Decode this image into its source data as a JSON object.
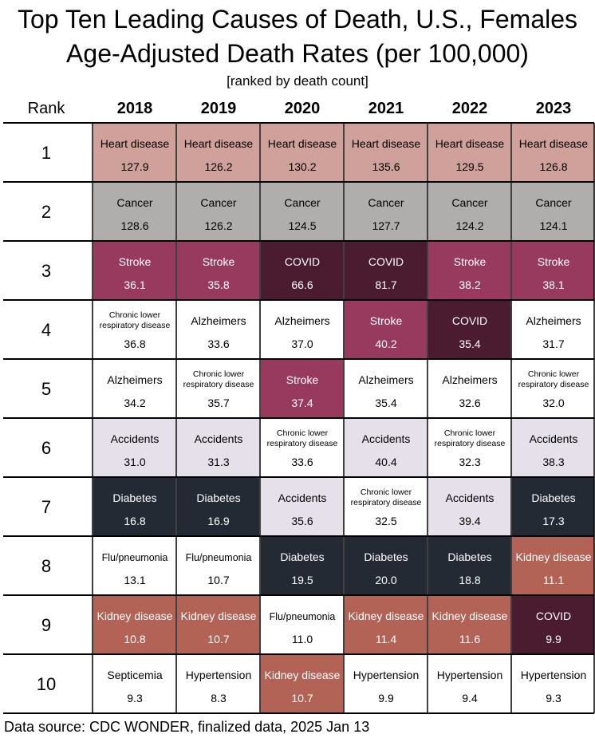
{
  "title_line1": "Top Ten Leading Causes of Death, U.S., Females",
  "title_line2": "Age-Adjusted Death Rates (per 100,000)",
  "subtitle": "[ranked by death count]",
  "source": "Data source: CDC WONDER, finalized data, 2025 Jan 13",
  "colors": {
    "Heart disease": "#d0a09a",
    "Cancer": "#b0aeac",
    "Stroke": "#983a5e",
    "COVID": "#4b1c30",
    "Diabetes": "#242a34",
    "Kidney disease": "#b26356",
    "Accidents": "#e5e0e9",
    "Chronic lower respiratory disease": "#ffffff",
    "Alzheimers": "#ffffff",
    "Flu/pneumonia": "#ffffff",
    "Septicemia": "#ffffff",
    "Hypertension": "#ffffff",
    "dark_text_on": [
      "Stroke",
      "COVID",
      "Diabetes",
      "Kidney disease"
    ]
  },
  "chart_data": {
    "type": "table",
    "rank_header": "Rank",
    "years": [
      "2018",
      "2019",
      "2020",
      "2021",
      "2022",
      "2023"
    ],
    "ranks": [
      "1",
      "2",
      "3",
      "4",
      "5",
      "6",
      "7",
      "8",
      "9",
      "10"
    ],
    "rows": [
      [
        {
          "cause": "Heart disease",
          "rate": "127.9"
        },
        {
          "cause": "Heart disease",
          "rate": "126.2"
        },
        {
          "cause": "Heart disease",
          "rate": "130.2"
        },
        {
          "cause": "Heart disease",
          "rate": "135.6"
        },
        {
          "cause": "Heart disease",
          "rate": "129.5"
        },
        {
          "cause": "Heart disease",
          "rate": "126.8"
        }
      ],
      [
        {
          "cause": "Cancer",
          "rate": "128.6"
        },
        {
          "cause": "Cancer",
          "rate": "126.2"
        },
        {
          "cause": "Cancer",
          "rate": "124.5"
        },
        {
          "cause": "Cancer",
          "rate": "127.7"
        },
        {
          "cause": "Cancer",
          "rate": "124.2"
        },
        {
          "cause": "Cancer",
          "rate": "124.1"
        }
      ],
      [
        {
          "cause": "Stroke",
          "rate": "36.1"
        },
        {
          "cause": "Stroke",
          "rate": "35.8"
        },
        {
          "cause": "COVID",
          "rate": "66.6"
        },
        {
          "cause": "COVID",
          "rate": "81.7"
        },
        {
          "cause": "Stroke",
          "rate": "38.2"
        },
        {
          "cause": "Stroke",
          "rate": "38.1"
        }
      ],
      [
        {
          "cause": "Chronic lower respiratory disease",
          "rate": "36.8"
        },
        {
          "cause": "Alzheimers",
          "rate": "33.6"
        },
        {
          "cause": "Alzheimers",
          "rate": "37.0"
        },
        {
          "cause": "Stroke",
          "rate": "40.2"
        },
        {
          "cause": "COVID",
          "rate": "35.4"
        },
        {
          "cause": "Alzheimers",
          "rate": "31.7"
        }
      ],
      [
        {
          "cause": "Alzheimers",
          "rate": "34.2"
        },
        {
          "cause": "Chronic lower respiratory disease",
          "rate": "35.7"
        },
        {
          "cause": "Stroke",
          "rate": "37.4"
        },
        {
          "cause": "Alzheimers",
          "rate": "35.4"
        },
        {
          "cause": "Alzheimers",
          "rate": "32.6"
        },
        {
          "cause": "Chronic lower respiratory disease",
          "rate": "32.0"
        }
      ],
      [
        {
          "cause": "Accidents",
          "rate": "31.0"
        },
        {
          "cause": "Accidents",
          "rate": "31.3"
        },
        {
          "cause": "Chronic lower respiratory disease",
          "rate": "33.6"
        },
        {
          "cause": "Accidents",
          "rate": "40.4"
        },
        {
          "cause": "Chronic lower respiratory disease",
          "rate": "32.3"
        },
        {
          "cause": "Accidents",
          "rate": "38.3"
        }
      ],
      [
        {
          "cause": "Diabetes",
          "rate": "16.8"
        },
        {
          "cause": "Diabetes",
          "rate": "16.9"
        },
        {
          "cause": "Accidents",
          "rate": "35.6"
        },
        {
          "cause": "Chronic lower respiratory disease",
          "rate": "32.5"
        },
        {
          "cause": "Accidents",
          "rate": "39.4"
        },
        {
          "cause": "Diabetes",
          "rate": "17.3"
        }
      ],
      [
        {
          "cause": "Flu/pneumonia",
          "rate": "13.1"
        },
        {
          "cause": "Flu/pneumonia",
          "rate": "10.7"
        },
        {
          "cause": "Diabetes",
          "rate": "19.5"
        },
        {
          "cause": "Diabetes",
          "rate": "20.0"
        },
        {
          "cause": "Diabetes",
          "rate": "18.8"
        },
        {
          "cause": "Kidney disease",
          "rate": "11.1"
        }
      ],
      [
        {
          "cause": "Kidney disease",
          "rate": "10.8"
        },
        {
          "cause": "Kidney disease",
          "rate": "10.7"
        },
        {
          "cause": "Flu/pneumonia",
          "rate": "11.0"
        },
        {
          "cause": "Kidney disease",
          "rate": "11.4"
        },
        {
          "cause": "Kidney disease",
          "rate": "11.6"
        },
        {
          "cause": "COVID",
          "rate": "9.9"
        }
      ],
      [
        {
          "cause": "Septicemia",
          "rate": "9.3"
        },
        {
          "cause": "Hypertension",
          "rate": "8.3"
        },
        {
          "cause": "Kidney disease",
          "rate": "10.7"
        },
        {
          "cause": "Hypertension",
          "rate": "9.9"
        },
        {
          "cause": "Hypertension",
          "rate": "9.4"
        },
        {
          "cause": "Hypertension",
          "rate": "9.3"
        }
      ]
    ]
  }
}
